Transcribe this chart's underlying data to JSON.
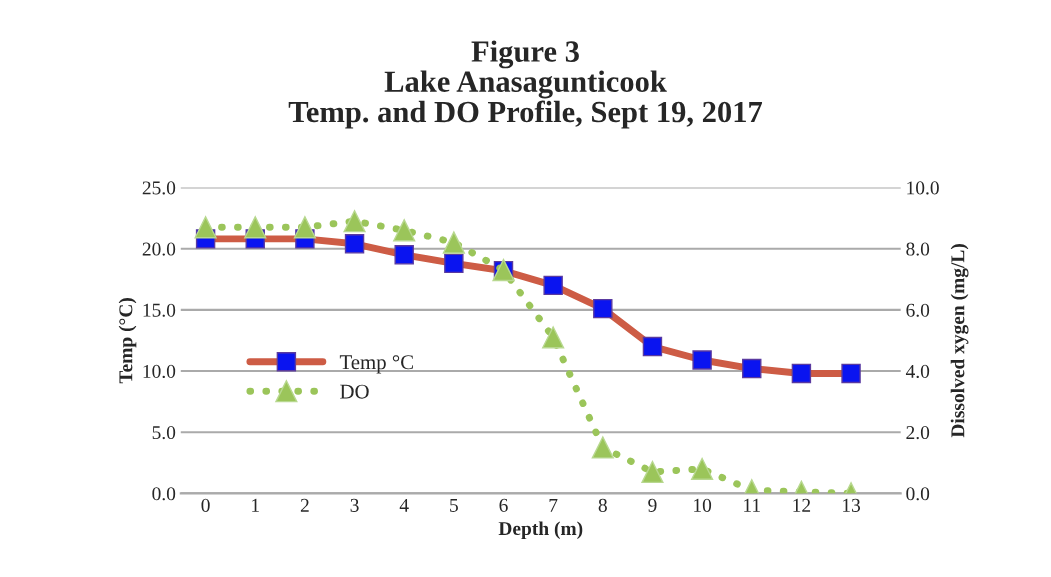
{
  "chart_data": {
    "type": "line",
    "title": "Figure 3\nLake Anasagunticook\nTemp. and DO Profile, Sept 19, 2017",
    "xlabel": "Depth (m)",
    "ylabel": "Temp (°C)",
    "y2label": "Dissolved xygen (mg/L)",
    "categories": [
      "0",
      "1",
      "2",
      "3",
      "4",
      "5",
      "6",
      "7",
      "8",
      "9",
      "10",
      "11",
      "12",
      "13"
    ],
    "series": [
      {
        "name": "Temp °C",
        "color": "#cd5c45",
        "marker": "square",
        "line_style": "solid",
        "values": [
          20.8,
          20.8,
          20.8,
          20.4,
          19.5,
          18.8,
          18.2,
          17.0,
          15.1,
          12.0,
          10.9,
          10.2,
          9.8,
          9.8
        ]
      },
      {
        "name": "DO",
        "color": "#9bc55a",
        "marker": "triangle",
        "line_style": "dotted",
        "axis": "y2",
        "values": [
          8.7,
          8.7,
          8.7,
          8.9,
          8.6,
          8.2,
          7.3,
          5.1,
          1.5,
          0.7,
          0.8,
          0.1,
          0.05,
          0.0
        ]
      }
    ],
    "ylim": [
      0,
      25
    ],
    "yticks": [
      {
        "value": 0,
        "label": "0.0"
      },
      {
        "value": 5,
        "label": "5.0"
      },
      {
        "value": 10,
        "label": "10.0"
      },
      {
        "value": 15,
        "label": "15.0"
      },
      {
        "value": 20,
        "label": "20.0"
      },
      {
        "value": 25,
        "label": "25.0"
      }
    ],
    "y2lim": [
      0,
      10
    ],
    "y2ticks": [
      {
        "value": 0,
        "label": "0.0"
      },
      {
        "value": 2,
        "label": "2.0"
      },
      {
        "value": 4,
        "label": "4.0"
      },
      {
        "value": 6,
        "label": "6.0"
      },
      {
        "value": 8,
        "label": "8.0"
      },
      {
        "value": 10,
        "label": "10.0"
      }
    ],
    "grid": "y",
    "legend": "left"
  }
}
